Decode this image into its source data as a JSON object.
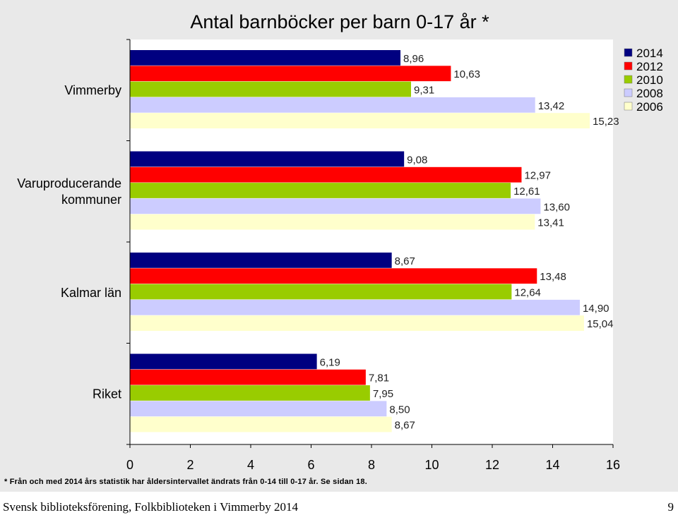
{
  "chart_data": {
    "type": "bar",
    "orientation": "horizontal",
    "title": "Antal barnböcker per barn 0-17 år *",
    "categories": [
      "Vimmerby",
      "Varuproducerande kommuner",
      "Kalmar län",
      "Riket"
    ],
    "category_lines": [
      [
        "Vimmerby"
      ],
      [
        "Varuproducerande",
        "kommuner"
      ],
      [
        "Kalmar län"
      ],
      [
        "Riket"
      ]
    ],
    "series": [
      {
        "name": "2014",
        "color": "#000080",
        "values": [
          8.96,
          9.08,
          8.67,
          6.19
        ],
        "labels": [
          "8,96",
          "9,08",
          "8,67",
          "6,19"
        ]
      },
      {
        "name": "2012",
        "color": "#ff0000",
        "values": [
          10.63,
          12.97,
          13.48,
          7.81
        ],
        "labels": [
          "10,63",
          "12,97",
          "13,48",
          "7,81"
        ]
      },
      {
        "name": "2010",
        "color": "#99cc00",
        "values": [
          9.31,
          12.61,
          12.64,
          7.95
        ],
        "labels": [
          "9,31",
          "12,61",
          "12,64",
          "7,95"
        ]
      },
      {
        "name": "2008",
        "color": "#ccccff",
        "values": [
          13.42,
          13.6,
          14.9,
          8.5
        ],
        "labels": [
          "13,42",
          "13,60",
          "14,90",
          "8,50"
        ]
      },
      {
        "name": "2006",
        "color": "#ffffcc",
        "values": [
          15.23,
          13.41,
          15.04,
          8.67
        ],
        "labels": [
          "15,23",
          "13,41",
          "15,04",
          "8,67"
        ]
      }
    ],
    "xlim": [
      0,
      16
    ],
    "xticks": [
      0,
      2,
      4,
      6,
      8,
      10,
      12,
      14,
      16
    ],
    "grid": false,
    "legend_position": "top-right"
  },
  "footnote": "* Från och med 2014 års statistik har åldersintervallet ändrats från 0-14 till 0-17 år. Se sidan 18.",
  "footer": {
    "text": "Svensk biblioteksförening, Folkbiblioteken i Vimmerby 2014",
    "page_number": "9"
  }
}
